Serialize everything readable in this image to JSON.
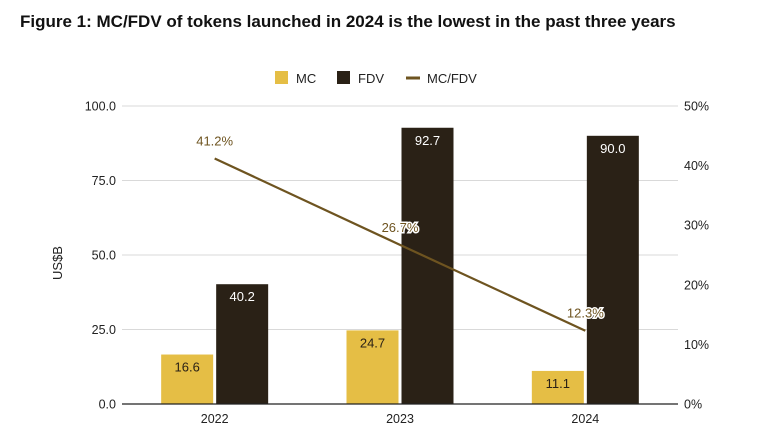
{
  "chart_data": {
    "type": "bar",
    "title": "Figure 1: MC/FDV of tokens launched in 2024 is the lowest in the past three years",
    "categories": [
      "2022",
      "2023",
      "2024"
    ],
    "series": [
      {
        "name": "MC",
        "values": [
          16.6,
          24.7,
          11.1
        ],
        "labels": [
          "16.6",
          "24.7",
          "11.1"
        ],
        "color": "#E5BE45",
        "kind": "bar"
      },
      {
        "name": "FDV",
        "values": [
          40.2,
          92.7,
          90.0
        ],
        "labels": [
          "40.2",
          "92.7",
          "90.0"
        ],
        "color": "#2A2116",
        "kind": "bar"
      },
      {
        "name": "MC/FDV",
        "values": [
          41.2,
          26.7,
          12.3
        ],
        "labels": [
          "41.2%",
          "26.7%",
          "12.3%"
        ],
        "color": "#6E5420",
        "kind": "line",
        "axis": "right"
      }
    ],
    "ylabel": "US$B",
    "ylim": [
      0,
      100
    ],
    "yticks": [
      "0.0",
      "25.0",
      "50.0",
      "75.0",
      "100.0"
    ],
    "y2lim": [
      0,
      50
    ],
    "y2ticks": [
      "0%",
      "10%",
      "20%",
      "30%",
      "40%",
      "50%"
    ],
    "legend_placement": "top-center",
    "grid": true
  }
}
